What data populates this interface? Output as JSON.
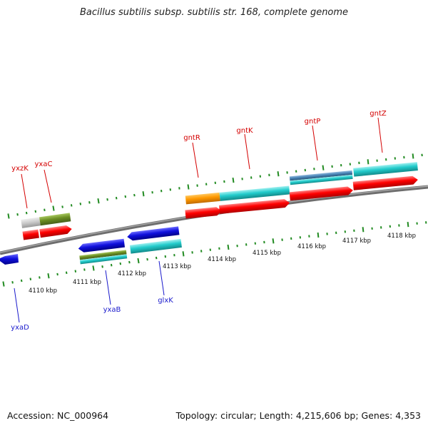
{
  "title": "Bacillus subtilis subsp. subtilis str. 168, complete genome",
  "footer": {
    "accession": "Accession: NC_000964",
    "topology": "Topology: circular; Length: 4,215,606 bp; Genes: 4,353"
  },
  "kbp_ticks": [
    {
      "label": "4110 kbp"
    },
    {
      "label": "4111 kbp"
    },
    {
      "label": "4112 kbp"
    },
    {
      "label": "4113 kbp"
    },
    {
      "label": "4114 kbp"
    },
    {
      "label": "4115 kbp"
    },
    {
      "label": "4116 kbp"
    },
    {
      "label": "4117 kbp"
    },
    {
      "label": "4118 kbp"
    }
  ],
  "gene_labels": {
    "forward": [
      "yxzK",
      "yxaC",
      "gntR",
      "gntK",
      "gntP",
      "gntZ"
    ],
    "reverse": [
      "yxaD",
      "yxaB",
      "glxK"
    ]
  },
  "colors": {
    "forward_label": "#d40000",
    "reverse_label": "#1a1acc",
    "tick_green": "#228b22",
    "cds_red": "#ff0000",
    "cds_blue": "#1010dd",
    "cds_cyan": "#22cccc",
    "cds_olive": "#6b8e23",
    "cds_orange": "#ff9900",
    "cds_gray": "#c8c8c8",
    "cds_steel": "#4682b4",
    "backbone": "#7a7a7a"
  }
}
